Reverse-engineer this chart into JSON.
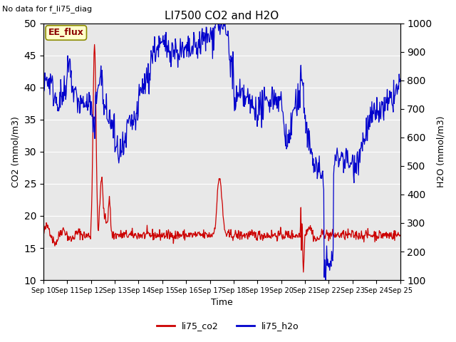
{
  "title": "LI7500 CO2 and H2O",
  "top_left_text": "No data for f_li75_diag",
  "annotation_box": "EE_flux",
  "xlabel": "Time",
  "ylabel_left": "CO2 (mmol/m3)",
  "ylabel_right": "H2O (mmol/m3)",
  "ylim_left": [
    10,
    50
  ],
  "ylim_right": [
    100,
    1000
  ],
  "xtick_labels": [
    "Sep 10",
    "Sep 11",
    "Sep 12",
    "Sep 13",
    "Sep 14",
    "Sep 15",
    "Sep 16",
    "Sep 17",
    "Sep 18",
    "Sep 19",
    "Sep 20",
    "Sep 21",
    "Sep 22",
    "Sep 23",
    "Sep 24",
    "Sep 25"
  ],
  "legend_labels": [
    "li75_co2",
    "li75_h2o"
  ],
  "legend_colors": [
    "#cc0000",
    "#0000cc"
  ],
  "bg_color": "#e8e8e8",
  "grid_color": "#ffffff",
  "annotation_color": "#8B0000",
  "annotation_face": "#ffffcc",
  "annotation_edge": "#8B8B00",
  "seed": 42
}
